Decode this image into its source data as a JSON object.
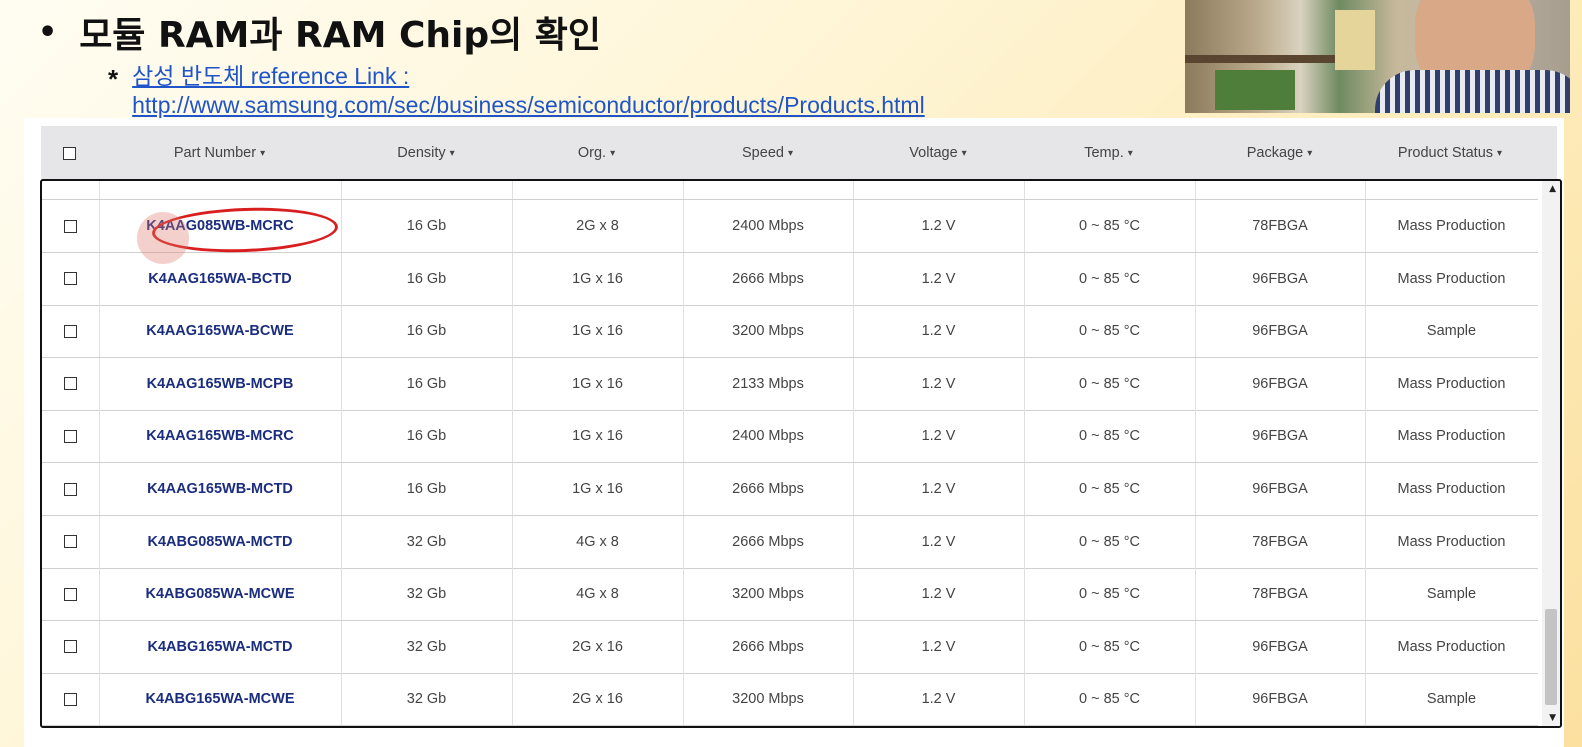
{
  "slide": {
    "bullet": "•",
    "title": "모듈 RAM과 RAM Chip의 확인",
    "ref_marker": "*",
    "ref_line1": "삼성 반도체 reference Link :",
    "ref_line2": "http://www.samsung.com/sec/business/semiconductor/products/Products.html"
  },
  "table": {
    "columns": [
      "Part Number",
      "Density",
      "Org.",
      "Speed",
      "Voltage",
      "Temp.",
      "Package",
      "Product Status"
    ],
    "sort_caret": "▾",
    "rows": [
      {
        "part": "K4AAG085WB-MCRC",
        "density": "16 Gb",
        "org": "2G x 8",
        "speed": "2400 Mbps",
        "voltage": "1.2 V",
        "temp": "0 ~ 85 °C",
        "package": "78FBGA",
        "status": "Mass Production"
      },
      {
        "part": "K4AAG165WA-BCTD",
        "density": "16 Gb",
        "org": "1G x 16",
        "speed": "2666 Mbps",
        "voltage": "1.2 V",
        "temp": "0 ~ 85 °C",
        "package": "96FBGA",
        "status": "Mass Production"
      },
      {
        "part": "K4AAG165WA-BCWE",
        "density": "16 Gb",
        "org": "1G x 16",
        "speed": "3200 Mbps",
        "voltage": "1.2 V",
        "temp": "0 ~ 85 °C",
        "package": "96FBGA",
        "status": "Sample"
      },
      {
        "part": "K4AAG165WB-MCPB",
        "density": "16 Gb",
        "org": "1G x 16",
        "speed": "2133 Mbps",
        "voltage": "1.2 V",
        "temp": "0 ~ 85 °C",
        "package": "96FBGA",
        "status": "Mass Production"
      },
      {
        "part": "K4AAG165WB-MCRC",
        "density": "16 Gb",
        "org": "1G x 16",
        "speed": "2400 Mbps",
        "voltage": "1.2 V",
        "temp": "0 ~ 85 °C",
        "package": "96FBGA",
        "status": "Mass Production"
      },
      {
        "part": "K4AAG165WB-MCTD",
        "density": "16 Gb",
        "org": "1G x 16",
        "speed": "2666 Mbps",
        "voltage": "1.2 V",
        "temp": "0 ~ 85 °C",
        "package": "96FBGA",
        "status": "Mass Production"
      },
      {
        "part": "K4ABG085WA-MCTD",
        "density": "32 Gb",
        "org": "4G x 8",
        "speed": "2666 Mbps",
        "voltage": "1.2 V",
        "temp": "0 ~ 85 °C",
        "package": "78FBGA",
        "status": "Mass Production"
      },
      {
        "part": "K4ABG085WA-MCWE",
        "density": "32 Gb",
        "org": "4G x 8",
        "speed": "3200 Mbps",
        "voltage": "1.2 V",
        "temp": "0 ~ 85 °C",
        "package": "78FBGA",
        "status": "Sample"
      },
      {
        "part": "K4ABG165WA-MCTD",
        "density": "32 Gb",
        "org": "2G x 16",
        "speed": "2666 Mbps",
        "voltage": "1.2 V",
        "temp": "0 ~ 85 °C",
        "package": "96FBGA",
        "status": "Mass Production"
      },
      {
        "part": "K4ABG165WA-MCWE",
        "density": "32 Gb",
        "org": "2G x 16",
        "speed": "3200 Mbps",
        "voltage": "1.2 V",
        "temp": "0 ~ 85 °C",
        "package": "96FBGA",
        "status": "Sample"
      }
    ]
  },
  "scrollbar": {
    "up_icon": "▲",
    "down_icon": "▼"
  },
  "colors": {
    "link": "#1f55c9",
    "part_number": "#1b2d7e",
    "annotation": "#d81e1e"
  }
}
